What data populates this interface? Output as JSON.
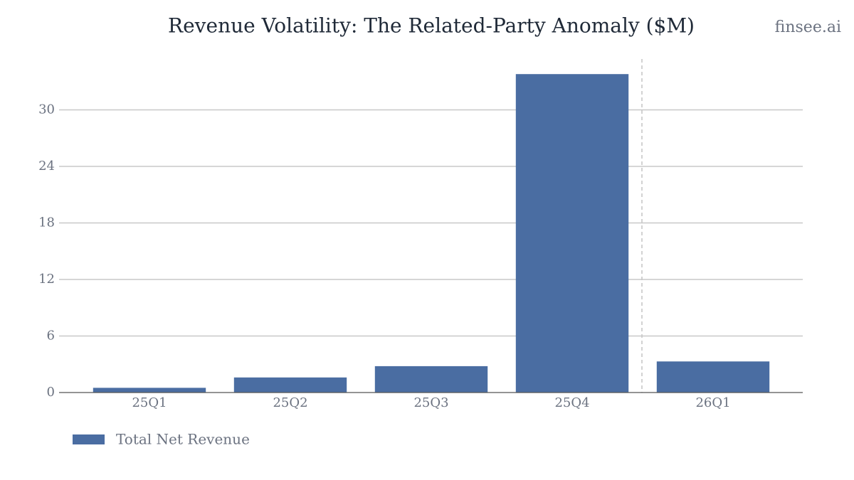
{
  "chart_data": {
    "type": "bar",
    "title": "Revenue Volatility: The Related-Party Anomaly ($M)",
    "watermark": "finsee.ai",
    "categories": [
      "25Q1",
      "25Q2",
      "25Q3",
      "25Q4",
      "26Q1"
    ],
    "series": [
      {
        "name": "Total Net Revenue",
        "color": "#4a6da2",
        "values": [
          0.5,
          1.6,
          2.8,
          33.8,
          3.3
        ]
      }
    ],
    "ylim": [
      0,
      35.4
    ],
    "yticks": [
      0,
      6,
      12,
      18,
      24,
      30
    ],
    "grid": true,
    "legend": "bottom-left"
  }
}
